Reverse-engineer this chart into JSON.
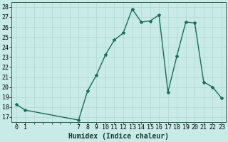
{
  "xlabel": "Humidex (Indice chaleur)",
  "x_values": [
    0,
    1,
    7,
    8,
    9,
    10,
    11,
    12,
    13,
    14,
    15,
    16,
    17,
    18,
    19,
    20,
    21,
    22,
    23
  ],
  "y_values": [
    18.3,
    17.7,
    16.7,
    19.6,
    21.2,
    23.2,
    24.7,
    25.4,
    27.8,
    26.5,
    26.6,
    27.2,
    19.5,
    23.1,
    26.5,
    26.4,
    20.5,
    20.0,
    18.9
  ],
  "line_color": "#1a6b5a",
  "marker": "*",
  "marker_size": 3,
  "bg_color": "#c8ebe8",
  "grid_color": "#b0d8d4",
  "ylim": [
    16.5,
    28.5
  ],
  "yticks": [
    17,
    18,
    19,
    20,
    21,
    22,
    23,
    24,
    25,
    26,
    27,
    28
  ],
  "xlabel_fontsize": 7,
  "tick_fontsize": 6,
  "line_width": 1.0
}
